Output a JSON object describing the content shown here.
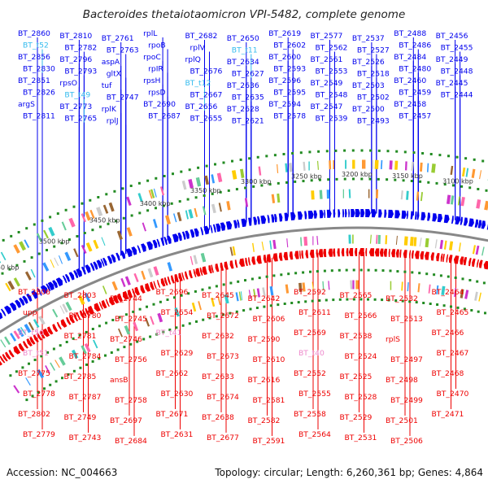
{
  "title": "Bacteroides thetaiotaomicron VPI-5482, complete genome",
  "accession": "Accession: NC_004663",
  "summary": "Topology: circular; Length: 6,260,361 bp; Genes: 4,864",
  "colors": {
    "forward": "#0000ee",
    "reverse": "#ee0000",
    "trna_forward": "#33bbee",
    "trna_reverse": "#ee88cc",
    "backbone": "#888888",
    "dots": "#228b22"
  },
  "position_ticks": [
    "3550 kbp",
    "3500 kbp",
    "3450 kbp",
    "3400 kbp",
    "3350 kbp",
    "3300 kbp",
    "3250 kbp",
    "3200 kbp",
    "3150 kbp",
    "3100 kbp"
  ],
  "top_labels": [
    {
      "t": "BT_2860"
    },
    {
      "t": "BT_t52",
      "rna": true
    },
    {
      "t": "BT_2856"
    },
    {
      "t": "BT_2830"
    },
    {
      "t": "BT_2851"
    },
    {
      "t": "BT_2826"
    },
    {
      "t": "argS"
    },
    {
      "t": "BT_2811"
    },
    {
      "t": "BT_2810"
    },
    {
      "t": "BT_2782"
    },
    {
      "t": "BT_2796"
    },
    {
      "t": "BT_2793"
    },
    {
      "t": "rpsO"
    },
    {
      "t": "BT_t49",
      "rna": true
    },
    {
      "t": "BT_2773"
    },
    {
      "t": "BT_2765"
    },
    {
      "t": "BT_2761"
    },
    {
      "t": "BT_2763"
    },
    {
      "t": "aspA"
    },
    {
      "t": "gltX"
    },
    {
      "t": "tuf"
    },
    {
      "t": "BT_2747"
    },
    {
      "t": "rplK"
    },
    {
      "t": "rplJ"
    },
    {
      "t": "rplL"
    },
    {
      "t": "rpoB"
    },
    {
      "t": "rpoC"
    },
    {
      "t": "rpIR"
    },
    {
      "t": "rpsH"
    },
    {
      "t": "rpsD"
    },
    {
      "t": "BT_2690"
    },
    {
      "t": "BT_2687"
    },
    {
      "t": "BT_2682"
    },
    {
      "t": "rplV"
    },
    {
      "t": "rplQ"
    },
    {
      "t": "BT_2676"
    },
    {
      "t": "BT_t12",
      "rna": true
    },
    {
      "t": "BT_2667"
    },
    {
      "t": "BT_2656"
    },
    {
      "t": "BT_2655"
    },
    {
      "t": "BT_2650"
    },
    {
      "t": "BT_t11",
      "rna": true
    },
    {
      "t": "BT_2634"
    },
    {
      "t": "BT_2627"
    },
    {
      "t": "BT_2636"
    },
    {
      "t": "BT_2635"
    },
    {
      "t": "BT_2628"
    },
    {
      "t": "BT_2621"
    },
    {
      "t": "BT_2619"
    },
    {
      "t": "BT_2602"
    },
    {
      "t": "BT_2600"
    },
    {
      "t": "BT_2593"
    },
    {
      "t": "BT_2596"
    },
    {
      "t": "BT_2595"
    },
    {
      "t": "BT_2594"
    },
    {
      "t": "BT_2578"
    },
    {
      "t": "BT_2577"
    },
    {
      "t": "BT_2562"
    },
    {
      "t": "BT_2561"
    },
    {
      "t": "BT_2553"
    },
    {
      "t": "BT_2549"
    },
    {
      "t": "BT_2548"
    },
    {
      "t": "BT_2547"
    },
    {
      "t": "BT_2539"
    },
    {
      "t": "BT_2537"
    },
    {
      "t": "BT_2527"
    },
    {
      "t": "BT_2526"
    },
    {
      "t": "BT_2518"
    },
    {
      "t": "BT_2503"
    },
    {
      "t": "BT_2502"
    },
    {
      "t": "BT_2500"
    },
    {
      "t": "BT_2493"
    },
    {
      "t": "BT_2488"
    },
    {
      "t": "BT_2486"
    },
    {
      "t": "BT_2484"
    },
    {
      "t": "BT_2480"
    },
    {
      "t": "BT_2460"
    },
    {
      "t": "BT_2459"
    },
    {
      "t": "BT_2458"
    },
    {
      "t": "BT_2457"
    },
    {
      "t": "BT_2456"
    },
    {
      "t": "BT_2455"
    },
    {
      "t": "BT_2449"
    },
    {
      "t": "BT_2448"
    },
    {
      "t": "BT_2445"
    },
    {
      "t": "BT_2444"
    }
  ],
  "bottom_labels": [
    {
      "t": "BT_2806"
    },
    {
      "t": "upp"
    },
    {
      "t": "BT_t50",
      "rna": true
    },
    {
      "t": "BT_t51",
      "rna": true
    },
    {
      "t": "BT_2775"
    },
    {
      "t": "BT_2778"
    },
    {
      "t": "BT_2802"
    },
    {
      "t": "BT_2779"
    },
    {
      "t": "BT_2803"
    },
    {
      "t": "BT_2780"
    },
    {
      "t": "BT_2781"
    },
    {
      "t": "BT_2784"
    },
    {
      "t": "BT_2785"
    },
    {
      "t": "BT_2787"
    },
    {
      "t": "BT_2749"
    },
    {
      "t": "BT_2743"
    },
    {
      "t": "BT_2744"
    },
    {
      "t": "BT_2745"
    },
    {
      "t": "BT_2746"
    },
    {
      "t": "BT_2756"
    },
    {
      "t": "ansB"
    },
    {
      "t": "BT_2758"
    },
    {
      "t": "BT_2697"
    },
    {
      "t": "BT_2684"
    },
    {
      "t": "BT_2696"
    },
    {
      "t": "BT_2654"
    },
    {
      "t": "BT_t41",
      "rna": true
    },
    {
      "t": "BT_2629"
    },
    {
      "t": "BT_2662"
    },
    {
      "t": "BT_2630"
    },
    {
      "t": "BT_2671"
    },
    {
      "t": "BT_2631"
    },
    {
      "t": "BT_2645"
    },
    {
      "t": "BT_2672"
    },
    {
      "t": "BT_2632"
    },
    {
      "t": "BT_2673"
    },
    {
      "t": "BT_2633"
    },
    {
      "t": "BT_2674"
    },
    {
      "t": "BT_2638"
    },
    {
      "t": "BT_2677"
    },
    {
      "t": "BT_2642"
    },
    {
      "t": "BT_2606"
    },
    {
      "t": "BT_2590"
    },
    {
      "t": "BT_2610"
    },
    {
      "t": "BT_2616"
    },
    {
      "t": "BT_2581"
    },
    {
      "t": "BT_2582"
    },
    {
      "t": "BT_2591"
    },
    {
      "t": "BT_2592"
    },
    {
      "t": "BT_2611"
    },
    {
      "t": "BT_2569"
    },
    {
      "t": "BT_t40",
      "rna": true
    },
    {
      "t": "BT_2552"
    },
    {
      "t": "BT_2555"
    },
    {
      "t": "BT_2558"
    },
    {
      "t": "BT_2564"
    },
    {
      "t": "BT_2565"
    },
    {
      "t": "BT_2566"
    },
    {
      "t": "BT_2538"
    },
    {
      "t": "BT_2524"
    },
    {
      "t": "BT_2525"
    },
    {
      "t": "BT_2528"
    },
    {
      "t": "BT_2529"
    },
    {
      "t": "BT_2531"
    },
    {
      "t": "BT_2532"
    },
    {
      "t": "BT_2513"
    },
    {
      "t": "rplS"
    },
    {
      "t": "BT_2497"
    },
    {
      "t": "BT_2498"
    },
    {
      "t": "BT_2499"
    },
    {
      "t": "BT_2501"
    },
    {
      "t": "BT_2506"
    },
    {
      "t": "BT_2464"
    },
    {
      "t": "BT_2465"
    },
    {
      "t": "BT_2466"
    },
    {
      "t": "BT_2467"
    },
    {
      "t": "BT_2468"
    },
    {
      "t": "BT_2470"
    },
    {
      "t": "BT_2471"
    }
  ]
}
